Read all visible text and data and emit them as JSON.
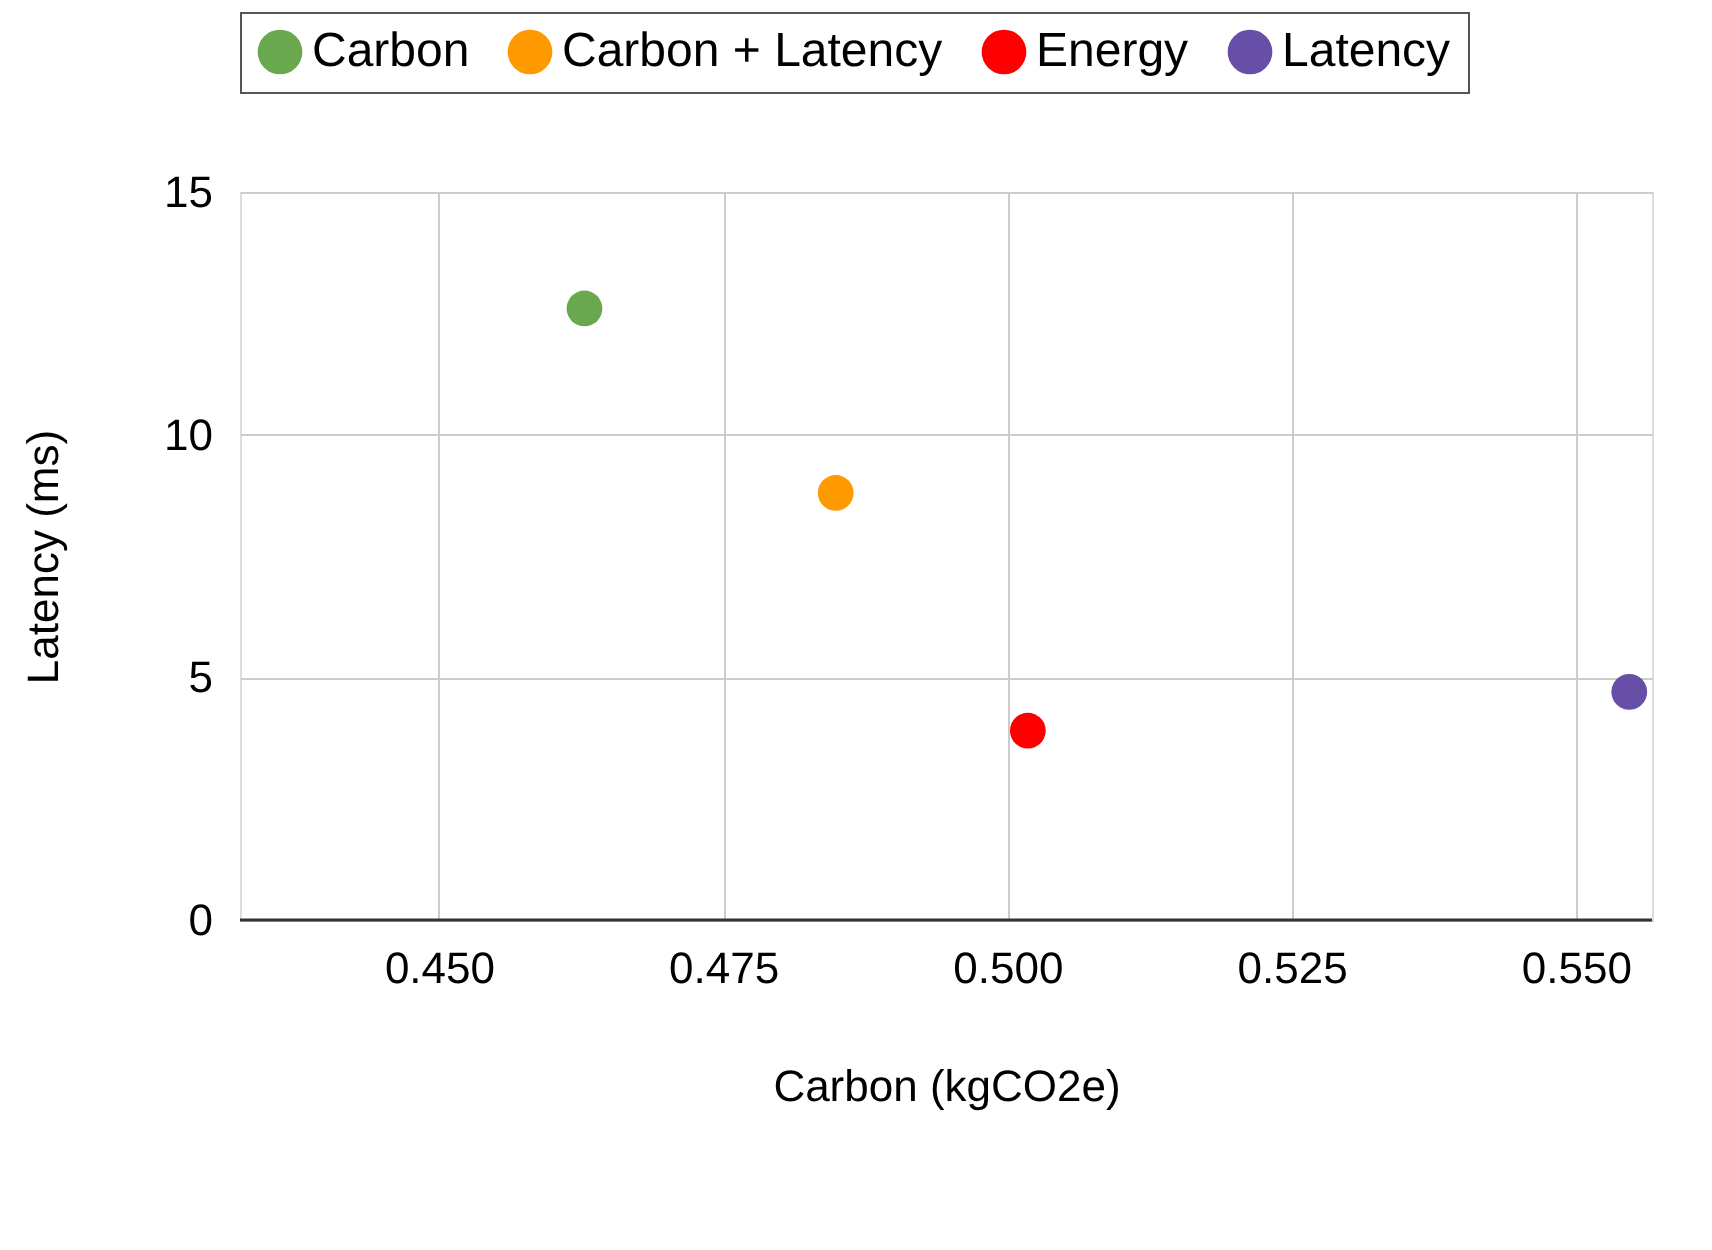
{
  "chart_data": {
    "type": "scatter",
    "xlabel": "Carbon (kgCO2e)",
    "ylabel": "Latency (ms)",
    "xlim": [
      0.4325,
      0.5567
    ],
    "xticks": [
      {
        "value": 0.45,
        "label": "0.450"
      },
      {
        "value": 0.475,
        "label": "0.475"
      },
      {
        "value": 0.5,
        "label": "0.500"
      },
      {
        "value": 0.525,
        "label": "0.525"
      },
      {
        "value": 0.55,
        "label": "0.550"
      }
    ],
    "ylim": [
      0,
      15
    ],
    "yticks": [
      0,
      5,
      10,
      15
    ],
    "grid": true,
    "legend": "top",
    "marker": "circle",
    "series": [
      {
        "name": "Carbon",
        "color": "#6aa84f",
        "x": [
          0.4628
        ],
        "values": [
          12.6
        ]
      },
      {
        "name": "Carbon + Latency",
        "color": "#ff9900",
        "x": [
          0.4849
        ],
        "values": [
          8.8
        ]
      },
      {
        "name": "Energy",
        "color": "#ff0000",
        "x": [
          0.5018
        ],
        "values": [
          3.9
        ]
      },
      {
        "name": "Latency",
        "color": "#674ea7",
        "x": [
          0.5547
        ],
        "values": [
          4.7
        ]
      }
    ]
  }
}
